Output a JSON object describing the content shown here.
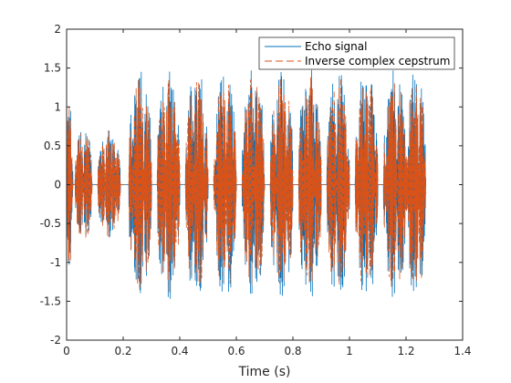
{
  "chart_data": {
    "type": "line",
    "xlabel": "Time (s)",
    "ylabel": "",
    "xlim": [
      0,
      1.4
    ],
    "ylim": [
      -2,
      2
    ],
    "x_ticks": [
      0,
      0.2,
      0.4,
      0.6,
      0.8,
      1,
      1.2,
      1.4
    ],
    "x_tick_labels": [
      "0",
      "0.2",
      "0.4",
      "0.6",
      "0.8",
      "1",
      "1.2",
      "1.4"
    ],
    "y_ticks": [
      -2,
      -1.5,
      -1,
      -0.5,
      0,
      0.5,
      1,
      1.5,
      2
    ],
    "y_tick_labels": [
      "-2",
      "-1.5",
      "-1",
      "-0.5",
      "0",
      "0.5",
      "1",
      "1.5",
      "2"
    ],
    "grid": false,
    "legend_position": "top-right",
    "series": [
      {
        "name": "Echo signal",
        "style": "solid",
        "color": "#0072BD",
        "segments": [
          {
            "t_start": 0.0,
            "t_end": 0.022,
            "amplitude": 1.05
          },
          {
            "t_start": 0.03,
            "t_end": 0.09,
            "amplitude": 0.75
          },
          {
            "t_start": 0.11,
            "t_end": 0.19,
            "amplitude": 0.7
          },
          {
            "t_start": 0.22,
            "t_end": 0.3,
            "amplitude": 1.5
          },
          {
            "t_start": 0.32,
            "t_end": 0.4,
            "amplitude": 1.5
          },
          {
            "t_start": 0.42,
            "t_end": 0.5,
            "amplitude": 1.5
          },
          {
            "t_start": 0.52,
            "t_end": 0.6,
            "amplitude": 1.5
          },
          {
            "t_start": 0.62,
            "t_end": 0.7,
            "amplitude": 1.5
          },
          {
            "t_start": 0.72,
            "t_end": 0.8,
            "amplitude": 1.5
          },
          {
            "t_start": 0.82,
            "t_end": 0.9,
            "amplitude": 1.5
          },
          {
            "t_start": 0.92,
            "t_end": 1.0,
            "amplitude": 1.5
          },
          {
            "t_start": 1.02,
            "t_end": 1.1,
            "amplitude": 1.5
          },
          {
            "t_start": 1.12,
            "t_end": 1.2,
            "amplitude": 1.5
          },
          {
            "t_start": 1.2,
            "t_end": 1.27,
            "amplitude": 1.5
          }
        ]
      },
      {
        "name": "Inverse complex cepstrum",
        "style": "dashed",
        "color": "#D95319",
        "segments": [
          {
            "t_start": 0.0,
            "t_end": 0.022,
            "amplitude": 1.1
          },
          {
            "t_start": 0.03,
            "t_end": 0.09,
            "amplitude": 0.75
          },
          {
            "t_start": 0.11,
            "t_end": 0.19,
            "amplitude": 0.7
          },
          {
            "t_start": 0.22,
            "t_end": 0.3,
            "amplitude": 1.4
          },
          {
            "t_start": 0.32,
            "t_end": 0.4,
            "amplitude": 1.4
          },
          {
            "t_start": 0.42,
            "t_end": 0.5,
            "amplitude": 1.4
          },
          {
            "t_start": 0.52,
            "t_end": 0.6,
            "amplitude": 1.4
          },
          {
            "t_start": 0.62,
            "t_end": 0.7,
            "amplitude": 1.4
          },
          {
            "t_start": 0.72,
            "t_end": 0.8,
            "amplitude": 1.4
          },
          {
            "t_start": 0.82,
            "t_end": 0.9,
            "amplitude": 1.4
          },
          {
            "t_start": 0.92,
            "t_end": 1.0,
            "amplitude": 1.4
          },
          {
            "t_start": 1.02,
            "t_end": 1.1,
            "amplitude": 1.4
          },
          {
            "t_start": 1.12,
            "t_end": 1.2,
            "amplitude": 1.4
          },
          {
            "t_start": 1.2,
            "t_end": 1.27,
            "amplitude": 1.4
          }
        ]
      }
    ]
  }
}
